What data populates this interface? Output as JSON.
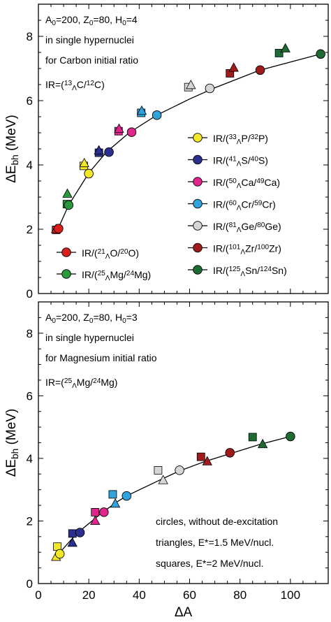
{
  "chart_data": [
    {
      "type": "scatter",
      "panel": "top",
      "ylabel_main": "ΔE",
      "ylabel_sub": "bh",
      "ylabel_unit": " (MeV)",
      "xlim": [
        0,
        115
      ],
      "ylim": [
        0,
        9
      ],
      "yticks": [
        "0",
        "2",
        "4",
        "6",
        "8"
      ],
      "annotation": [
        {
          "text": "A",
          "sub": "0",
          "rest": "=200, Z"
        },
        {
          "text": "in single hypernuclei"
        },
        {
          "text": "for Carbon initial ratio"
        }
      ],
      "ann_line1": "A0=200, Z0=80, H0=4",
      "ann_line2": "in single hypernuclei",
      "ann_line3": "for Carbon initial ratio",
      "ir_label": "IR=(13ΛC/12C)",
      "curve": {
        "x": [
          7,
          8,
          12,
          20,
          27,
          36,
          47,
          60,
          70,
          88,
          112
        ],
        "y": [
          1.95,
          2.05,
          2.75,
          3.75,
          4.4,
          5.0,
          5.55,
          6.05,
          6.4,
          6.95,
          7.45
        ]
      },
      "series": [
        {
          "name": "IR/(21ΛO/20O)",
          "color": "#d9201e",
          "circles": [
            [
              8,
              2.02
            ]
          ],
          "triangles": [
            [
              7,
              2.0
            ]
          ],
          "squares": [
            [
              7,
              1.98
            ]
          ]
        },
        {
          "name": "IR/(25ΛMg/24Mg)",
          "color": "#2a9a3c",
          "circles": [
            [
              12,
              2.75
            ]
          ],
          "triangles": [
            [
              11.5,
              3.1
            ]
          ],
          "squares": [
            [
              11.3,
              2.78
            ]
          ]
        },
        {
          "name": "IR/(33ΛP/32P)",
          "color": "#f4e826",
          "circles": [
            [
              20,
              3.73
            ]
          ],
          "triangles": [
            [
              18.2,
              4.05
            ]
          ],
          "squares": [
            [
              18.0,
              3.97
            ]
          ]
        },
        {
          "name": "IR/(41ΛS/40S)",
          "color": "#2b2f8f",
          "circles": [
            [
              28,
              4.4
            ]
          ],
          "triangles": [
            [
              24,
              4.45
            ]
          ],
          "squares": [
            [
              24.0,
              4.38
            ]
          ]
        },
        {
          "name": "IR/(50ΛCa/49Ca)",
          "color": "#e0268c",
          "circles": [
            [
              37,
              5.02
            ]
          ],
          "triangles": [
            [
              32,
              5.12
            ]
          ],
          "squares": [
            [
              31.8,
              5.05
            ]
          ]
        },
        {
          "name": "IR/(60ΛCr/59Cr)",
          "color": "#2ea3dc",
          "circles": [
            [
              47,
              5.55
            ]
          ],
          "triangles": [
            [
              41,
              5.68
            ]
          ],
          "squares": [
            [
              40.8,
              5.62
            ]
          ]
        },
        {
          "name": "IR/(81ΛGe/80Ge)",
          "color": "#d6d6d6",
          "circles": [
            [
              68,
              6.38
            ]
          ],
          "triangles": [
            [
              60.5,
              6.48
            ]
          ],
          "squares": [
            [
              59.5,
              6.42
            ]
          ]
        },
        {
          "name": "IR/(101ΛZr/100Zr)",
          "color": "#a01b1b",
          "circles": [
            [
              88,
              6.95
            ]
          ],
          "triangles": [
            [
              77.5,
              7.02
            ]
          ],
          "squares": [
            [
              76.0,
              6.85
            ]
          ]
        },
        {
          "name": "IR/(125ΛSn/124Sn)",
          "color": "#1d6b32",
          "circles": [
            [
              112,
              7.45
            ]
          ],
          "triangles": [
            [
              98,
              7.62
            ]
          ],
          "squares": [
            [
              95.5,
              7.48
            ]
          ]
        }
      ]
    },
    {
      "type": "scatter",
      "panel": "bottom",
      "ylabel_main": "ΔE",
      "ylabel_sub": "bh",
      "ylabel_unit": " (MeV)",
      "xlabel": "ΔA",
      "xlim": [
        0,
        115
      ],
      "ylim": [
        0,
        9
      ],
      "xticks": [
        "0",
        "20",
        "40",
        "60",
        "80",
        "100"
      ],
      "yticks": [
        "0",
        "2",
        "4",
        "6",
        "8"
      ],
      "ann_line1": "A0=200, Z0=80, H0=3",
      "ann_line2": "in single hypernuclei",
      "ann_line3": "for Magnesium initial ratio",
      "ir_label": "IR=(25ΛMg/24Mg)",
      "notes": [
        "circles, without de-excitation",
        "triangles, E*=1.5 MeV/nucl.",
        "squares, E*=2 MeV/nucl."
      ],
      "curve": {
        "x": [
          7,
          8,
          13,
          16,
          22,
          25,
          31,
          35,
          48,
          56,
          66,
          76,
          88,
          100
        ],
        "y": [
          0.85,
          0.95,
          1.4,
          1.65,
          2.05,
          2.25,
          2.6,
          2.8,
          3.3,
          3.6,
          3.9,
          4.15,
          4.45,
          4.7
        ]
      },
      "series": [
        {
          "name": "IR/(21ΛO/20O)",
          "color": "#f4e826",
          "circles": [
            [
              8.5,
              0.95
            ]
          ],
          "triangles": [
            [
              7,
              0.85
            ]
          ],
          "squares": [
            [
              7.5,
              1.18
            ]
          ]
        },
        {
          "name": "IR/(25ΛMg/24Mg)",
          "color": "#2b2f8f",
          "circles": [
            [
              16.5,
              1.63
            ]
          ],
          "triangles": [
            [
              13.5,
              1.3
            ]
          ],
          "squares": [
            [
              13.5,
              1.6
            ]
          ]
        },
        {
          "name": "IR/(33ΛP/32P)",
          "color": "#e0268c",
          "circles": [
            [
              26,
              2.28
            ]
          ],
          "triangles": [
            [
              22.5,
              2.0
            ]
          ],
          "squares": [
            [
              22.5,
              2.28
            ]
          ]
        },
        {
          "name": "IR/(41ΛS/40S)",
          "color": "#2ea3dc",
          "circles": [
            [
              35,
              2.8
            ]
          ],
          "triangles": [
            [
              30.5,
              2.55
            ]
          ],
          "squares": [
            [
              29.5,
              2.85
            ]
          ]
        },
        {
          "name": "IR/(50ΛCa/49Ca)",
          "color": "#d6d6d6",
          "circles": [
            [
              56,
              3.62
            ]
          ],
          "triangles": [
            [
              49.5,
              3.3
            ]
          ],
          "squares": [
            [
              47.5,
              3.62
            ]
          ]
        },
        {
          "name": "IR/(60ΛCr/59Cr)",
          "color": "#a01b1b",
          "circles": [
            [
              76,
              4.18
            ]
          ],
          "triangles": [
            [
              67,
              3.9
            ]
          ],
          "squares": [
            [
              64.5,
              4.05
            ]
          ]
        },
        {
          "name": "IR/(81ΛGe/80Ge)",
          "color": "#1d6b32",
          "circles": [
            [
              100,
              4.7
            ]
          ],
          "triangles": [
            [
              89,
              4.45
            ]
          ],
          "squares": [
            [
              85,
              4.68
            ]
          ]
        }
      ]
    }
  ],
  "legend_top": [
    {
      "label": "IR/(",
      "a": "21",
      "el": "O/",
      "b": "20",
      "el2": "O)",
      "color": "#d9201e"
    },
    {
      "label": "IR/(",
      "a": "25",
      "el": "Mg/",
      "b": "24",
      "el2": "Mg)",
      "color": "#2a9a3c"
    }
  ],
  "legend_right": [
    {
      "label": "IR/(",
      "a": "33",
      "el": "P/",
      "b": "32",
      "el2": "P)",
      "color": "#f4e826"
    },
    {
      "label": "IR/(",
      "a": "41",
      "el": "S/",
      "b": "40",
      "el2": "S)",
      "color": "#2b2f8f"
    },
    {
      "label": "IR/(",
      "a": "50",
      "el": "Ca/",
      "b": "49",
      "el2": "Ca)",
      "color": "#e0268c"
    },
    {
      "label": "IR/(",
      "a": "60",
      "el": "Cr/",
      "b": "59",
      "el2": "Cr)",
      "color": "#2ea3dc"
    },
    {
      "label": "IR/(",
      "a": "81",
      "el": "Ge/",
      "b": "80",
      "el2": "Ge)",
      "color": "#d6d6d6"
    },
    {
      "label": "IR/(",
      "a": "101",
      "el": "Zr/",
      "b": "100",
      "el2": "Zr)",
      "color": "#a01b1b"
    },
    {
      "label": "IR/(",
      "a": "125",
      "el": "Sn/",
      "b": "124",
      "el2": "Sn)",
      "color": "#1d6b32"
    }
  ],
  "sym_lambda": "Λ",
  "ir_prefix": "IR=(",
  "ir_top_a": "13",
  "ir_top_el": "C/",
  "ir_top_b": "12",
  "ir_top_el2": "C)",
  "ir_bot_a": "25",
  "ir_bot_el": "Mg/",
  "ir_bot_b": "24",
  "ir_bot_el2": "Mg)",
  "ann_top": {
    "A": "A",
    "a0": "0",
    "eq1": "=200, Z",
    "z0": "0",
    "eq2": "=80, H",
    "h0": "0",
    "eq3": "=4"
  },
  "ann_bot": {
    "A": "A",
    "a0": "0",
    "eq1": "=200, Z",
    "z0": "0",
    "eq2": "=80, H",
    "h0": "0",
    "eq3": "=3"
  }
}
